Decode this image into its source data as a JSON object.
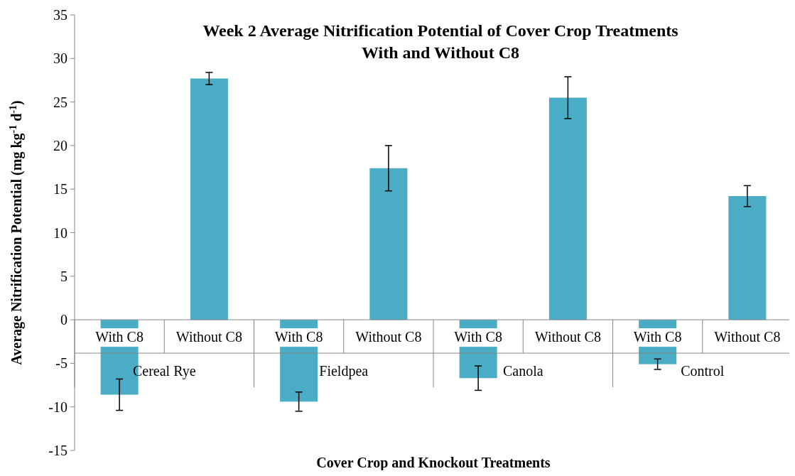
{
  "chart_data": {
    "type": "bar",
    "title": "Week 2 Average Nitrification Potential of Cover Crop Treatments\nWith and Without C8",
    "xlabel": "Cover Crop and Knockout Treatments",
    "ylabel": "Average Nitrification Potential (mg kg$^{-1}$ d$^{-1}$)",
    "categories": [
      "With C8",
      "Without C8",
      "With C8",
      "Without C8",
      "With C8",
      "Without C8",
      "With C8",
      "Without C8"
    ],
    "annotations": [
      "Cereal Rye",
      "Fieldpea",
      "Canola",
      "Control"
    ],
    "values": [
      -8.6,
      27.7,
      -9.4,
      17.4,
      -6.7,
      25.5,
      -5.1,
      14.2
    ],
    "errors": [
      1.8,
      0.7,
      1.1,
      2.6,
      1.4,
      2.4,
      0.6,
      1.2
    ],
    "color": "#4bacc6",
    "ylim": [
      -15,
      35
    ],
    "yticks": [
      -15,
      -10,
      -5,
      0,
      5,
      10,
      15,
      20,
      25,
      30,
      35
    ]
  }
}
